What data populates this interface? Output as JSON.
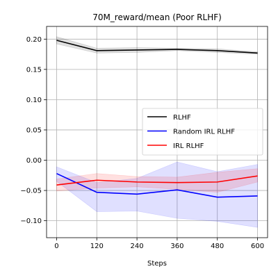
{
  "chart_data": {
    "type": "line",
    "title": "70M_reward/mean (Poor RLHF)",
    "xlabel": "Steps",
    "ylabel": "",
    "x": [
      0,
      120,
      240,
      360,
      480,
      600
    ],
    "xlim": [
      -30,
      630
    ],
    "ylim": [
      -0.128,
      0.221
    ],
    "xticks": [
      0,
      120,
      240,
      360,
      480,
      600
    ],
    "yticks": [
      -0.1,
      -0.05,
      0.0,
      0.05,
      0.1,
      0.15,
      0.2
    ],
    "ytick_labels": [
      "−0.10",
      "−0.05",
      "0.00",
      "0.05",
      "0.10",
      "0.15",
      "0.20"
    ],
    "grid": true,
    "legend_position": "center-right",
    "series": [
      {
        "name": "RLHF",
        "color": "#000000",
        "values": [
          0.198,
          0.181,
          0.182,
          0.183,
          0.181,
          0.177
        ],
        "lower": [
          0.192,
          0.177,
          0.178,
          0.181,
          0.178,
          0.175
        ],
        "upper": [
          0.204,
          0.185,
          0.186,
          0.185,
          0.184,
          0.179
        ]
      },
      {
        "name": "Random IRL RLHF",
        "color": "#0000ff",
        "values": [
          -0.022,
          -0.053,
          -0.056,
          -0.049,
          -0.061,
          -0.059
        ],
        "lower": [
          -0.035,
          -0.085,
          -0.084,
          -0.096,
          -0.101,
          -0.111
        ],
        "upper": [
          -0.011,
          -0.037,
          -0.03,
          -0.003,
          -0.019,
          -0.007
        ]
      },
      {
        "name": "IRL RLHF",
        "color": "#ff0000",
        "values": [
          -0.041,
          -0.033,
          -0.036,
          -0.037,
          -0.036,
          -0.026
        ],
        "lower": [
          -0.051,
          -0.046,
          -0.044,
          -0.048,
          -0.053,
          -0.036
        ],
        "upper": [
          -0.031,
          -0.022,
          -0.027,
          -0.028,
          -0.02,
          -0.014
        ]
      }
    ]
  }
}
